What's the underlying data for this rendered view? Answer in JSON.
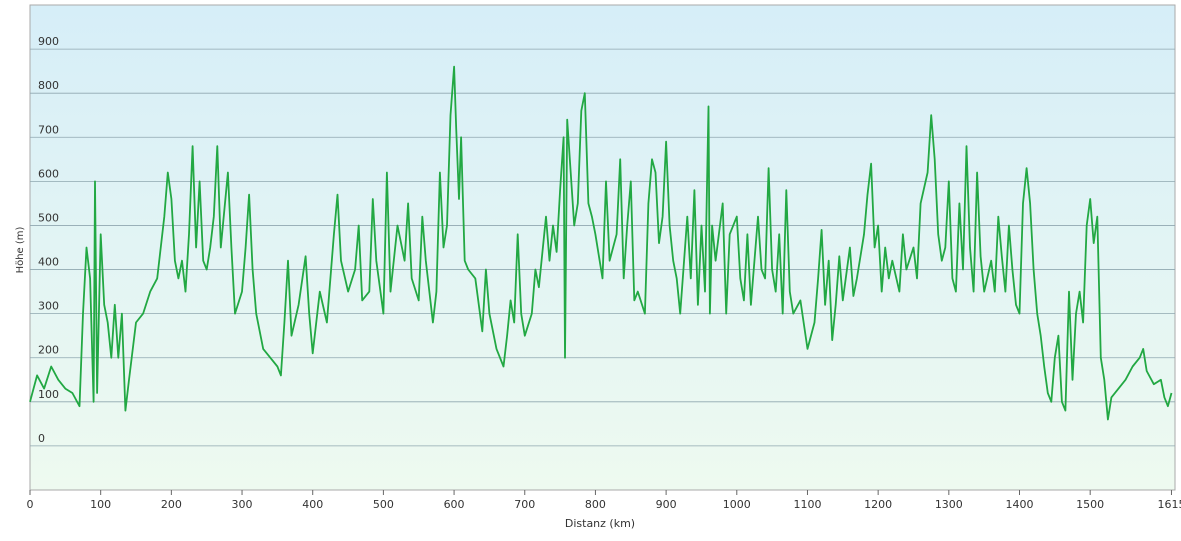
{
  "chart_data": {
    "type": "line",
    "xlabel": "Distanz  (km)",
    "ylabel": "Höhe (m)",
    "xlim": [
      0,
      1620
    ],
    "ylim": [
      -100,
      1000
    ],
    "xticks": [
      0,
      100,
      200,
      300,
      400,
      500,
      600,
      700,
      800,
      900,
      1000,
      1100,
      1200,
      1300,
      1400,
      1500,
      1615
    ],
    "yticks": [
      0,
      100,
      200,
      300,
      400,
      500,
      600,
      700,
      800,
      900
    ],
    "grid": true,
    "series": [
      {
        "color": "#22a843",
        "x": [
          0,
          10,
          20,
          30,
          40,
          50,
          60,
          70,
          75,
          80,
          85,
          90,
          92,
          95,
          100,
          105,
          110,
          115,
          120,
          125,
          130,
          135,
          140,
          150,
          160,
          170,
          180,
          190,
          195,
          200,
          205,
          210,
          215,
          220,
          225,
          230,
          235,
          240,
          245,
          250,
          255,
          260,
          265,
          270,
          280,
          285,
          290,
          300,
          305,
          310,
          315,
          320,
          330,
          340,
          350,
          355,
          360,
          365,
          370,
          380,
          390,
          395,
          400,
          410,
          420,
          430,
          435,
          440,
          450,
          460,
          465,
          470,
          480,
          485,
          490,
          500,
          505,
          510,
          520,
          530,
          535,
          540,
          550,
          555,
          560,
          570,
          575,
          580,
          585,
          590,
          595,
          600,
          603,
          607,
          610,
          615,
          620,
          630,
          640,
          645,
          650,
          660,
          670,
          675,
          680,
          685,
          690,
          695,
          700,
          710,
          715,
          720,
          730,
          735,
          740,
          745,
          750,
          755,
          757,
          760,
          765,
          770,
          775,
          780,
          785,
          790,
          795,
          800,
          810,
          815,
          820,
          830,
          835,
          840,
          845,
          850,
          855,
          860,
          870,
          875,
          880,
          885,
          890,
          895,
          900,
          905,
          910,
          915,
          920,
          930,
          935,
          940,
          945,
          950,
          955,
          960,
          962,
          965,
          970,
          980,
          985,
          990,
          1000,
          1005,
          1010,
          1015,
          1020,
          1030,
          1035,
          1040,
          1045,
          1050,
          1055,
          1060,
          1065,
          1070,
          1075,
          1080,
          1090,
          1100,
          1110,
          1115,
          1120,
          1125,
          1130,
          1135,
          1140,
          1145,
          1150,
          1160,
          1165,
          1170,
          1180,
          1185,
          1190,
          1195,
          1200,
          1205,
          1210,
          1215,
          1220,
          1230,
          1235,
          1240,
          1250,
          1255,
          1260,
          1270,
          1275,
          1280,
          1285,
          1290,
          1295,
          1300,
          1305,
          1310,
          1315,
          1320,
          1325,
          1330,
          1335,
          1340,
          1345,
          1350,
          1360,
          1365,
          1370,
          1375,
          1380,
          1385,
          1390,
          1395,
          1400,
          1405,
          1410,
          1415,
          1420,
          1425,
          1430,
          1435,
          1440,
          1445,
          1450,
          1455,
          1460,
          1465,
          1470,
          1475,
          1480,
          1485,
          1490,
          1495,
          1500,
          1505,
          1510,
          1515,
          1520,
          1525,
          1530,
          1540,
          1550,
          1560,
          1570,
          1575,
          1580,
          1590,
          1600,
          1605,
          1610,
          1615
        ],
        "values": [
          100,
          160,
          130,
          180,
          150,
          130,
          120,
          90,
          300,
          450,
          380,
          100,
          600,
          120,
          480,
          320,
          280,
          200,
          320,
          200,
          300,
          80,
          150,
          280,
          300,
          350,
          380,
          520,
          620,
          560,
          420,
          380,
          420,
          350,
          480,
          680,
          450,
          600,
          420,
          400,
          450,
          520,
          680,
          450,
          620,
          450,
          300,
          350,
          450,
          570,
          400,
          300,
          220,
          200,
          180,
          160,
          280,
          420,
          250,
          320,
          430,
          300,
          210,
          350,
          280,
          480,
          570,
          420,
          350,
          400,
          500,
          330,
          350,
          560,
          420,
          300,
          620,
          350,
          500,
          420,
          550,
          380,
          330,
          520,
          420,
          280,
          350,
          620,
          450,
          500,
          750,
          860,
          720,
          560,
          700,
          420,
          400,
          380,
          260,
          400,
          300,
          220,
          180,
          250,
          330,
          280,
          480,
          300,
          250,
          300,
          400,
          360,
          520,
          420,
          500,
          440,
          580,
          700,
          200,
          740,
          620,
          500,
          550,
          760,
          800,
          550,
          520,
          480,
          380,
          600,
          420,
          480,
          650,
          380,
          500,
          600,
          330,
          350,
          300,
          550,
          650,
          620,
          460,
          520,
          690,
          500,
          420,
          380,
          300,
          520,
          380,
          580,
          320,
          500,
          350,
          770,
          300,
          500,
          420,
          550,
          300,
          480,
          520,
          380,
          330,
          480,
          320,
          520,
          400,
          380,
          630,
          400,
          350,
          480,
          300,
          580,
          350,
          300,
          330,
          220,
          280,
          380,
          490,
          320,
          420,
          240,
          320,
          430,
          330,
          450,
          340,
          380,
          480,
          570,
          640,
          450,
          500,
          350,
          450,
          380,
          420,
          350,
          480,
          400,
          450,
          380,
          550,
          620,
          750,
          650,
          480,
          420,
          450,
          600,
          380,
          350,
          550,
          400,
          680,
          450,
          350,
          620,
          430,
          350,
          420,
          350,
          520,
          430,
          350,
          500,
          400,
          320,
          300,
          550,
          630,
          550,
          400,
          300,
          250,
          180,
          120,
          100,
          200,
          250,
          100,
          80,
          350,
          150,
          300,
          350,
          280,
          500,
          560,
          460,
          520,
          200,
          150,
          60,
          110,
          130,
          150,
          180,
          200,
          220,
          170,
          140,
          150,
          110,
          90,
          120
        ]
      }
    ]
  }
}
